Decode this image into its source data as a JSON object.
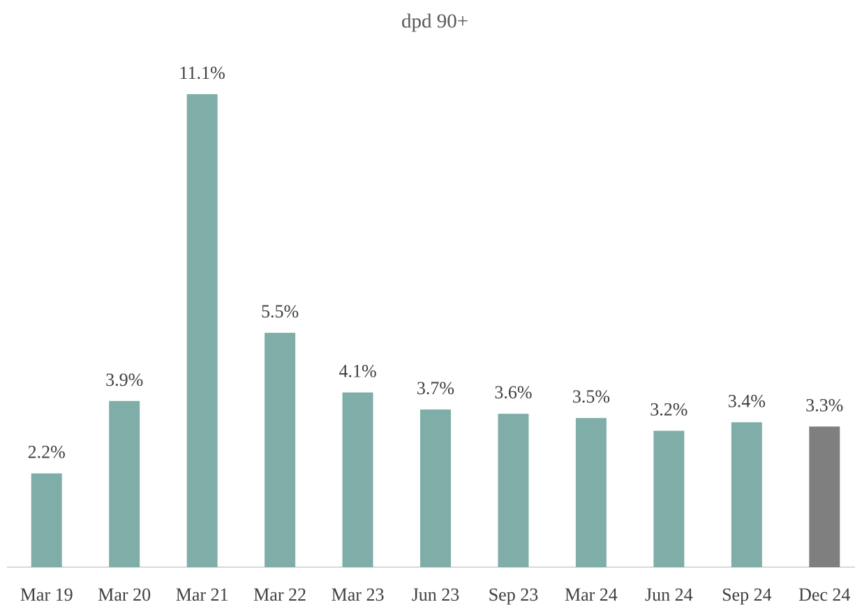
{
  "chart_data": {
    "type": "bar",
    "title": "dpd 90+",
    "categories": [
      "Mar 19",
      "Mar 20",
      "Mar 21",
      "Mar 22",
      "Mar 23",
      "Jun 23",
      "Sep 23",
      "Mar 24",
      "Jun 24",
      "Sep 24",
      "Dec 24"
    ],
    "values": [
      2.2,
      3.9,
      11.1,
      5.5,
      4.1,
      3.7,
      3.6,
      3.5,
      3.2,
      3.4,
      3.3
    ],
    "value_labels": [
      "2.2%",
      "3.9%",
      "11.1%",
      "5.5%",
      "4.1%",
      "3.7%",
      "3.6%",
      "3.5%",
      "3.2%",
      "3.4%",
      "3.3%"
    ],
    "colors": [
      "#7faea8",
      "#7faea8",
      "#7faea8",
      "#7faea8",
      "#7faea8",
      "#7faea8",
      "#7faea8",
      "#7faea8",
      "#7faea8",
      "#7faea8",
      "#7f7f7f"
    ]
  }
}
